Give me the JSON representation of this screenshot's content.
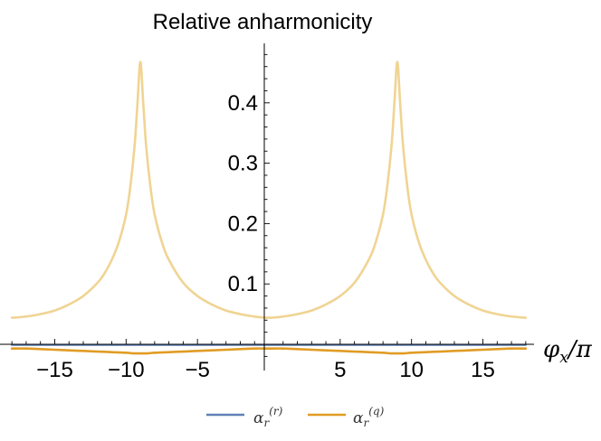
{
  "chart_data": {
    "type": "line",
    "title": "Relative anharmonicity",
    "xlabel": "φx/π",
    "ylabel": "",
    "xlim": [
      -18.2,
      18.2
    ],
    "ylim": [
      -0.02,
      0.48
    ],
    "xticks": [
      -15,
      -10,
      -5,
      5,
      10,
      15
    ],
    "xtick_labels": [
      "−15",
      "−10",
      "−5",
      "5",
      "10",
      "15"
    ],
    "yticks": [
      0.1,
      0.2,
      0.3,
      0.4
    ],
    "ytick_labels": [
      "0.1",
      "0.2",
      "0.3",
      "0.4"
    ],
    "grid": false,
    "legend_position": "bottom",
    "series": [
      {
        "name": "αr(r)",
        "legend_main": "α",
        "legend_sub": "r",
        "legend_sup": "(r)",
        "color": "#5E81B5",
        "x": [
          -18,
          -16,
          -14,
          -12,
          -10,
          -9,
          -8,
          -6,
          -4,
          -2,
          0,
          2,
          4,
          6,
          8,
          9,
          10,
          12,
          14,
          16,
          18
        ],
        "y": [
          -0.001,
          -0.001,
          -0.001,
          -0.001,
          -0.001,
          -0.001,
          -0.001,
          -0.001,
          -0.001,
          -0.001,
          -0.001,
          -0.001,
          -0.001,
          -0.001,
          -0.001,
          -0.001,
          -0.001,
          -0.001,
          -0.001,
          -0.001,
          -0.001
        ]
      },
      {
        "name": "αr(q)",
        "legend_main": "α",
        "legend_sub": "r",
        "legend_sup": "(q)",
        "color": "#E19C24",
        "x": [
          -18,
          -17,
          -16,
          -15,
          -14,
          -13,
          -12,
          -11,
          -10,
          -9.5,
          -9,
          -8.5,
          -8,
          -7,
          -6,
          -5,
          -4,
          -3,
          -2,
          -1,
          0,
          1,
          2,
          3,
          4,
          5,
          6,
          7,
          8,
          8.5,
          9,
          9.5,
          10,
          11,
          12,
          13,
          14,
          15,
          16,
          17,
          18
        ],
        "y": [
          -0.007,
          -0.007,
          -0.008,
          -0.009,
          -0.01,
          -0.011,
          -0.012,
          -0.013,
          -0.014,
          -0.015,
          -0.015,
          -0.015,
          -0.014,
          -0.013,
          -0.012,
          -0.011,
          -0.01,
          -0.009,
          -0.008,
          -0.007,
          -0.007,
          -0.007,
          -0.008,
          -0.009,
          -0.01,
          -0.011,
          -0.012,
          -0.013,
          -0.014,
          -0.015,
          -0.015,
          -0.015,
          -0.014,
          -0.013,
          -0.012,
          -0.011,
          -0.01,
          -0.009,
          -0.008,
          -0.007,
          -0.007
        ]
      },
      {
        "name": "",
        "color": "#F0D493",
        "x": [
          -18,
          -17,
          -16,
          -15,
          -14,
          -13,
          -12,
          -11.5,
          -11,
          -10.5,
          -10,
          -9.7,
          -9.4,
          -9.2,
          -9,
          -8.8,
          -8.6,
          -8.3,
          -8,
          -7.5,
          -7,
          -6,
          -5,
          -4,
          -3,
          -2,
          -1,
          0,
          1,
          2,
          3,
          4,
          5,
          6,
          7,
          7.5,
          8,
          8.3,
          8.6,
          8.8,
          9,
          9.2,
          9.4,
          9.7,
          10,
          10.5,
          11,
          11.5,
          12,
          13,
          14,
          15,
          16,
          17,
          18
        ],
        "y": [
          0.044,
          0.046,
          0.05,
          0.056,
          0.066,
          0.08,
          0.102,
          0.118,
          0.14,
          0.17,
          0.215,
          0.262,
          0.33,
          0.4,
          0.468,
          0.4,
          0.33,
          0.262,
          0.215,
          0.17,
          0.14,
          0.102,
          0.08,
          0.066,
          0.056,
          0.05,
          0.046,
          0.044,
          0.046,
          0.05,
          0.056,
          0.066,
          0.08,
          0.102,
          0.14,
          0.17,
          0.215,
          0.262,
          0.33,
          0.4,
          0.468,
          0.4,
          0.33,
          0.262,
          0.215,
          0.17,
          0.14,
          0.118,
          0.102,
          0.08,
          0.066,
          0.056,
          0.05,
          0.046,
          0.044
        ]
      }
    ]
  }
}
